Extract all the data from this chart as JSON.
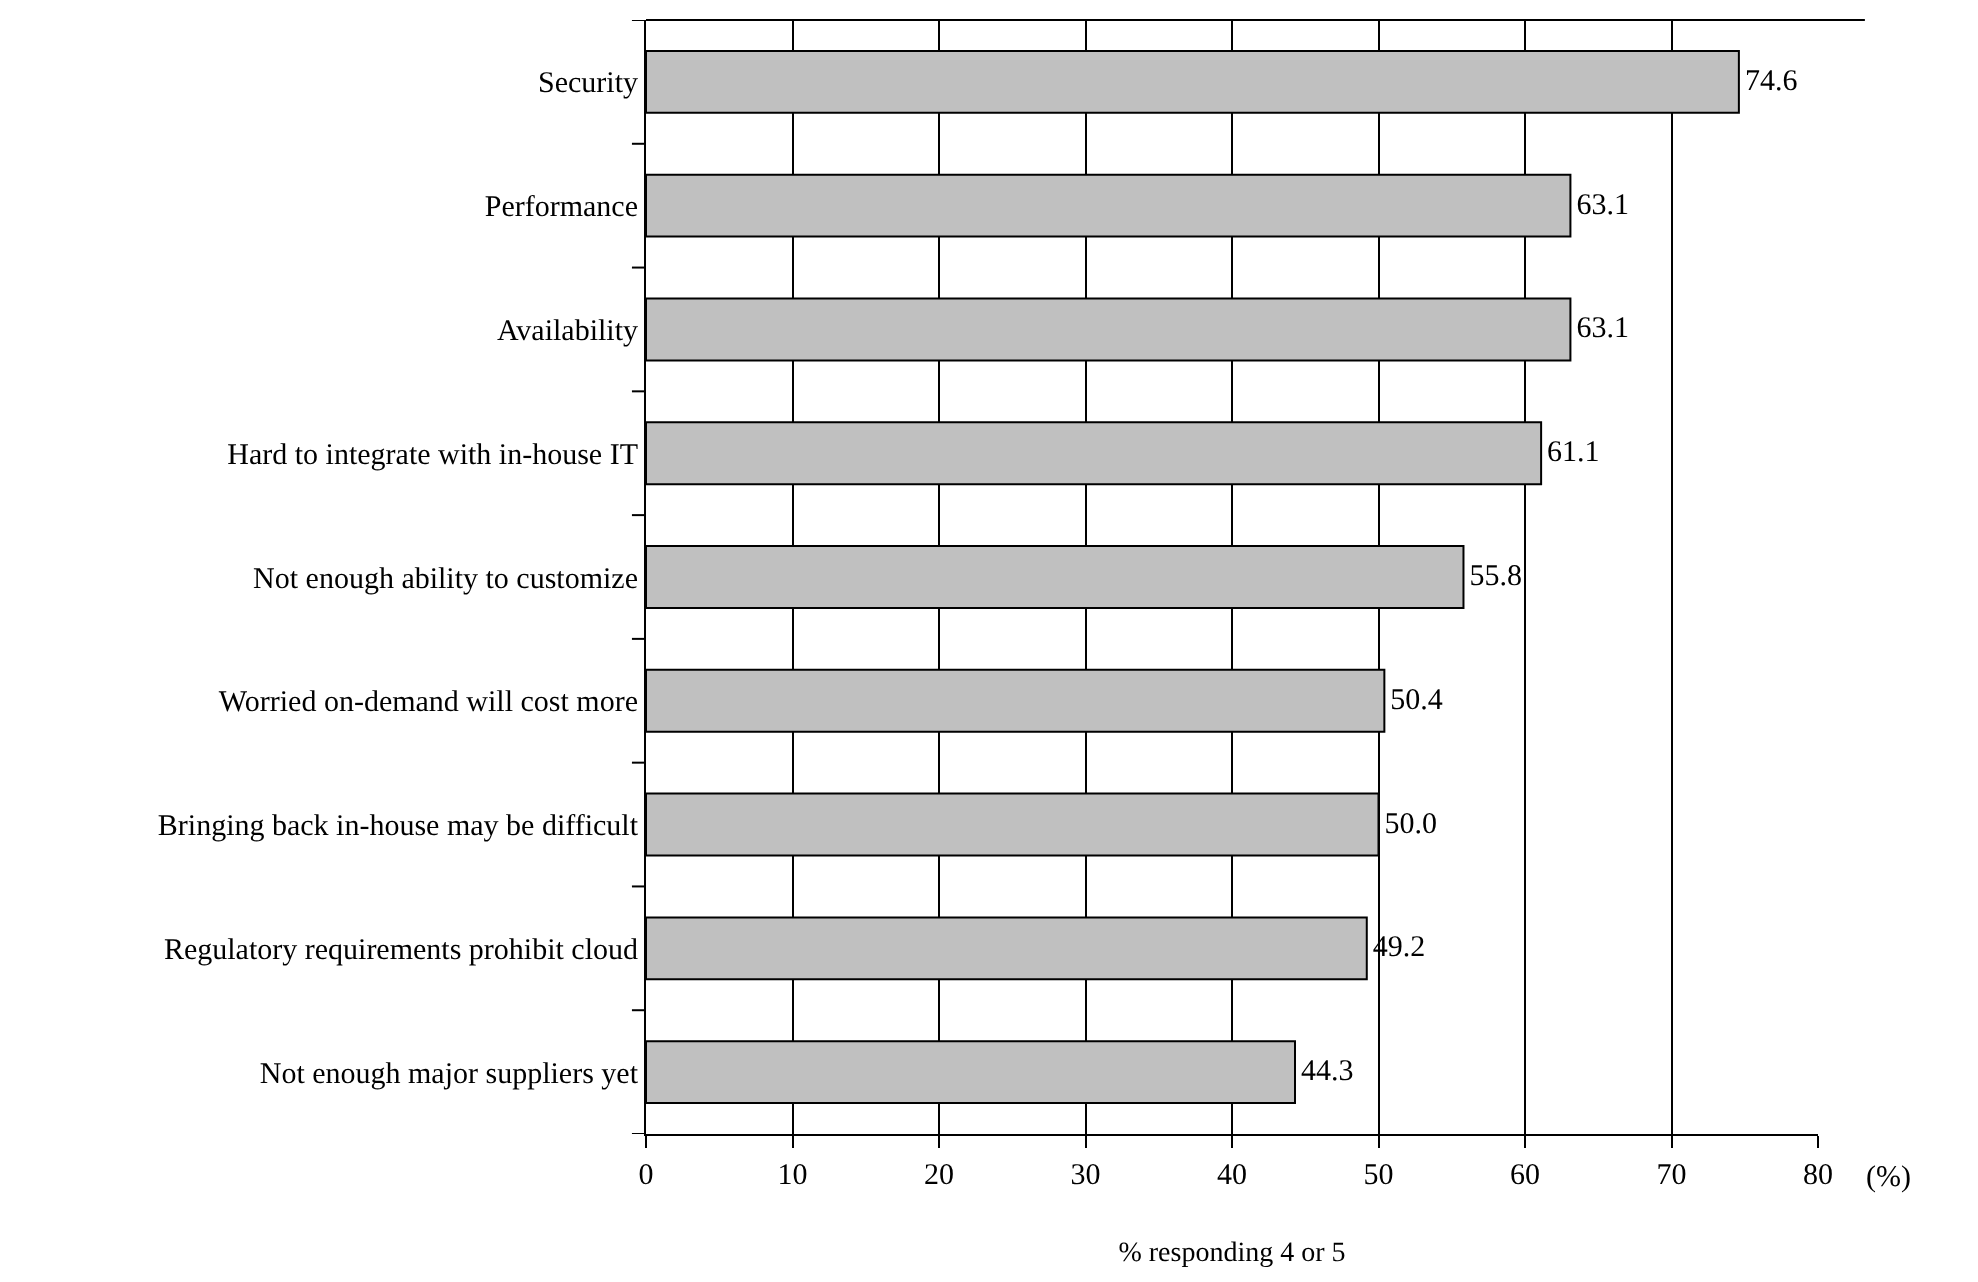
{
  "chart_data": {
    "type": "bar",
    "orientation": "horizontal",
    "categories": [
      "Security",
      "Performance",
      "Availability",
      "Hard to integrate with in-house IT",
      "Not enough ability to customize",
      "Worried on-demand will cost more",
      "Bringing back in-house may be difficult",
      "Regulatory requirements prohibit cloud",
      "Not enough major suppliers yet"
    ],
    "values": [
      74.6,
      63.1,
      63.1,
      61.1,
      55.8,
      50.4,
      50.0,
      49.2,
      44.3
    ],
    "value_labels": [
      "74.6",
      "63.1",
      "63.1",
      "61.1",
      "55.8",
      "50.4",
      "50.0",
      "49.2",
      "44.3"
    ],
    "color": "#c0c0c0",
    "xlim": [
      0,
      80
    ],
    "xticks": [
      0,
      10,
      20,
      30,
      40,
      50,
      60,
      70,
      80
    ],
    "xlabel": "% responding 4 or 5",
    "annotations": [
      "(%)"
    ],
    "grid": "x"
  }
}
